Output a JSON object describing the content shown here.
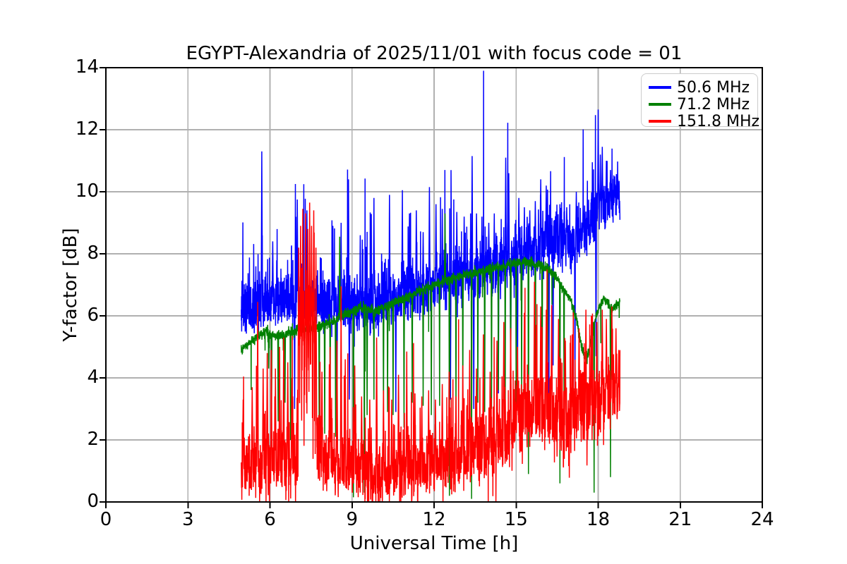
{
  "chart_data": {
    "type": "line",
    "title": "EGYPT-Alexandria of 2025/11/01 with focus code = 01",
    "xlabel": "Universal Time [h]",
    "ylabel": "Y-factor [dB]",
    "xlim": [
      0,
      24
    ],
    "ylim": [
      0,
      14
    ],
    "xticks": [
      0,
      3,
      6,
      9,
      12,
      15,
      18,
      21,
      24
    ],
    "yticks": [
      0,
      2,
      4,
      6,
      8,
      10,
      12,
      14
    ],
    "grid": true,
    "grid_color": "#b0b0b0",
    "axis_color": "#000000",
    "background_color": "#ffffff",
    "legend_position": "top-right",
    "legend_border_color": "#cccccc",
    "x_start": 4.95,
    "x_end": 18.8,
    "sample_step": 0.005,
    "series": [
      {
        "name": "50.6 MHz",
        "color": "#0000ff",
        "seed": 101,
        "noise_sigma": 0.42,
        "up_factor": 1.25,
        "down_factor": 0.85,
        "tail_prob": 0.08,
        "tail_scale": 0.85,
        "spike_w": 0.022,
        "dip_w": 0.016,
        "baseline": [
          [
            4.95,
            6.1
          ],
          [
            5.5,
            6.25
          ],
          [
            6.0,
            6.4
          ],
          [
            6.5,
            6.45
          ],
          [
            7.0,
            6.5
          ],
          [
            7.5,
            6.45
          ],
          [
            8.0,
            6.35
          ],
          [
            8.5,
            6.2
          ],
          [
            9.0,
            6.15
          ],
          [
            9.5,
            6.2
          ],
          [
            10.0,
            6.3
          ],
          [
            10.5,
            6.45
          ],
          [
            11.0,
            6.6
          ],
          [
            11.5,
            6.75
          ],
          [
            12.0,
            6.9
          ],
          [
            12.5,
            7.0
          ],
          [
            13.0,
            7.1
          ],
          [
            13.5,
            7.2
          ],
          [
            14.0,
            7.35
          ],
          [
            14.5,
            7.55
          ],
          [
            15.0,
            7.75
          ],
          [
            15.5,
            7.9
          ],
          [
            16.0,
            8.2
          ],
          [
            16.3,
            8.45
          ],
          [
            16.6,
            8.4
          ],
          [
            17.0,
            8.25
          ],
          [
            17.4,
            8.5
          ],
          [
            17.7,
            8.8
          ],
          [
            17.95,
            9.1
          ],
          [
            18.1,
            9.35
          ],
          [
            18.3,
            9.5
          ],
          [
            18.5,
            9.6
          ],
          [
            18.7,
            9.7
          ],
          [
            18.8,
            9.6
          ]
        ],
        "up_spikes": [
          [
            5.7,
            11.3
          ],
          [
            6.1,
            8.4
          ],
          [
            7.0,
            9.75
          ],
          [
            7.35,
            9.4
          ],
          [
            8.3,
            8.9
          ],
          [
            8.6,
            9.0
          ],
          [
            8.87,
            10.4
          ],
          [
            9.3,
            8.6
          ],
          [
            9.8,
            9.8
          ],
          [
            10.37,
            9.9
          ],
          [
            10.84,
            10.05
          ],
          [
            11.1,
            9.3
          ],
          [
            11.35,
            9.4
          ],
          [
            11.6,
            8.7
          ],
          [
            11.83,
            10.15
          ],
          [
            12.07,
            9.6
          ],
          [
            12.3,
            9.45
          ],
          [
            12.62,
            10.7
          ],
          [
            12.83,
            9.35
          ],
          [
            13.1,
            9.2
          ],
          [
            13.39,
            11.15
          ],
          [
            13.55,
            9.3
          ],
          [
            13.75,
            9.2
          ],
          [
            14.0,
            9.0
          ],
          [
            14.2,
            9.3
          ],
          [
            14.62,
            11.1
          ],
          [
            14.73,
            10.6
          ],
          [
            15.1,
            9.8
          ],
          [
            15.3,
            9.5
          ],
          [
            15.5,
            9.4
          ],
          [
            15.7,
            9.7
          ],
          [
            15.9,
            10.4
          ],
          [
            16.1,
            10.2
          ],
          [
            16.35,
            9.9
          ],
          [
            16.6,
            9.6
          ],
          [
            16.85,
            9.5
          ],
          [
            17.2,
            10.0
          ],
          [
            17.45,
            9.8
          ],
          [
            18.0,
            12.65
          ],
          [
            18.08,
            11.2
          ],
          [
            18.15,
            11.45
          ],
          [
            18.3,
            11.0
          ],
          [
            18.45,
            10.7
          ],
          [
            18.6,
            10.45
          ],
          [
            18.72,
            10.4
          ]
        ],
        "down_spikes": [
          [
            6.9,
            3.0
          ],
          [
            8.45,
            3.1
          ],
          [
            8.9,
            3.3
          ],
          [
            10.6,
            2.9
          ],
          [
            12.6,
            3.3
          ],
          [
            13.45,
            3.0
          ],
          [
            14.35,
            3.5
          ],
          [
            14.8,
            3.4
          ],
          [
            15.05,
            3.5
          ],
          [
            16.2,
            3.3
          ],
          [
            16.35,
            4.4
          ],
          [
            17.15,
            3.6
          ],
          [
            17.92,
            4.7
          ]
        ]
      },
      {
        "name": "71.2 MHz",
        "color": "#008000",
        "seed": 202,
        "noise_sigma": 0.08,
        "up_factor": 1.0,
        "down_factor": 1.0,
        "down_tail_prob": 0.02,
        "down_tail_scale": 0.4,
        "spike_w": 0.02,
        "dip_w": 0.014,
        "baseline": [
          [
            4.95,
            4.9
          ],
          [
            5.2,
            5.1
          ],
          [
            5.5,
            5.3
          ],
          [
            5.8,
            5.5
          ],
          [
            6.1,
            5.4
          ],
          [
            6.4,
            5.35
          ],
          [
            6.7,
            5.45
          ],
          [
            7.0,
            5.55
          ],
          [
            7.4,
            5.6
          ],
          [
            7.8,
            5.65
          ],
          [
            8.2,
            5.8
          ],
          [
            8.6,
            6.0
          ],
          [
            9.0,
            6.15
          ],
          [
            9.4,
            6.25
          ],
          [
            9.8,
            6.15
          ],
          [
            10.2,
            6.3
          ],
          [
            10.6,
            6.45
          ],
          [
            11.0,
            6.6
          ],
          [
            11.5,
            6.8
          ],
          [
            12.0,
            7.0
          ],
          [
            12.5,
            7.15
          ],
          [
            13.0,
            7.3
          ],
          [
            13.5,
            7.4
          ],
          [
            14.0,
            7.5
          ],
          [
            14.5,
            7.6
          ],
          [
            15.0,
            7.7
          ],
          [
            15.3,
            7.75
          ],
          [
            15.6,
            7.7
          ],
          [
            15.9,
            7.6
          ],
          [
            16.2,
            7.5
          ],
          [
            16.5,
            7.2
          ],
          [
            16.8,
            6.8
          ],
          [
            17.0,
            6.5
          ],
          [
            17.2,
            5.9
          ],
          [
            17.35,
            5.2
          ],
          [
            17.5,
            4.7
          ],
          [
            17.6,
            4.65
          ],
          [
            17.75,
            5.3
          ],
          [
            17.9,
            5.9
          ],
          [
            18.05,
            6.3
          ],
          [
            18.2,
            6.55
          ],
          [
            18.35,
            6.4
          ],
          [
            18.5,
            6.2
          ],
          [
            18.65,
            6.35
          ],
          [
            18.8,
            6.4
          ]
        ],
        "up_spikes": [
          [
            8.55,
            8.55
          ],
          [
            12.4,
            9.3
          ]
        ],
        "down_spikes": [
          [
            5.95,
            4.3
          ],
          [
            6.06,
            3.0
          ],
          [
            6.3,
            2.6
          ],
          [
            6.55,
            3.2
          ],
          [
            6.75,
            2.0
          ],
          [
            7.8,
            1.5
          ],
          [
            8.0,
            2.2
          ],
          [
            8.2,
            3.0
          ],
          [
            8.4,
            2.1
          ],
          [
            9.05,
            0.15
          ],
          [
            9.45,
            0.3
          ],
          [
            9.55,
            2.8
          ],
          [
            9.8,
            3.3
          ],
          [
            10.15,
            3.0
          ],
          [
            10.3,
            2.9
          ],
          [
            10.5,
            2.8
          ],
          [
            10.9,
            2.4
          ],
          [
            11.2,
            3.2
          ],
          [
            11.6,
            3.1
          ],
          [
            11.9,
            2.8
          ],
          [
            12.2,
            3.1
          ],
          [
            12.56,
            0.2
          ],
          [
            12.8,
            2.9
          ],
          [
            13.05,
            3.3
          ],
          [
            13.37,
            0.1
          ],
          [
            13.6,
            3.2
          ],
          [
            13.85,
            2.9
          ],
          [
            14.1,
            3.0
          ],
          [
            14.35,
            3.6
          ],
          [
            14.6,
            2.7
          ],
          [
            14.8,
            3.2
          ],
          [
            15.0,
            2.8
          ],
          [
            15.2,
            3.4
          ],
          [
            15.45,
            0.9
          ],
          [
            15.7,
            3.1
          ],
          [
            15.95,
            2.7
          ],
          [
            16.15,
            4.3
          ],
          [
            16.6,
            0.6
          ],
          [
            16.75,
            3.5
          ],
          [
            17.85,
            0.3
          ],
          [
            18.45,
            0.8
          ]
        ]
      },
      {
        "name": "151.8 MHz",
        "color": "#ff0000",
        "seed": 303,
        "up_factor": 1.2,
        "down_factor": 0.8,
        "tail_prob": 0.13,
        "tail_scale": 0.85,
        "down_tail_prob": 0.04,
        "down_tail_scale": 0.8,
        "spike_w": 0.025,
        "dip_w": 0.015,
        "noise_keys": [
          [
            4.95,
            0.5
          ],
          [
            6.95,
            0.5
          ],
          [
            7.05,
            1.5
          ],
          [
            7.65,
            1.5
          ],
          [
            7.75,
            0.5
          ],
          [
            9.2,
            0.45
          ],
          [
            10.5,
            0.4
          ],
          [
            12.0,
            0.45
          ],
          [
            14.0,
            0.5
          ],
          [
            14.8,
            0.55
          ],
          [
            15.5,
            0.6
          ],
          [
            16.5,
            0.6
          ],
          [
            17.5,
            0.6
          ],
          [
            18.8,
            0.55
          ]
        ],
        "baseline": [
          [
            4.95,
            1.2
          ],
          [
            5.1,
            1.0
          ],
          [
            5.5,
            0.95
          ],
          [
            6.0,
            1.0
          ],
          [
            6.5,
            1.0
          ],
          [
            6.95,
            1.1
          ],
          [
            7.05,
            4.2
          ],
          [
            7.2,
            4.6
          ],
          [
            7.35,
            4.7
          ],
          [
            7.5,
            4.6
          ],
          [
            7.65,
            4.0
          ],
          [
            7.75,
            1.3
          ],
          [
            8.0,
            1.2
          ],
          [
            8.5,
            1.1
          ],
          [
            9.0,
            1.0
          ],
          [
            9.3,
            0.85
          ],
          [
            9.6,
            0.75
          ],
          [
            10.0,
            0.7
          ],
          [
            10.5,
            0.75
          ],
          [
            11.0,
            0.9
          ],
          [
            11.5,
            1.0
          ],
          [
            12.0,
            1.05
          ],
          [
            12.5,
            1.15
          ],
          [
            13.0,
            1.3
          ],
          [
            13.5,
            1.45
          ],
          [
            14.0,
            1.6
          ],
          [
            14.4,
            1.8
          ],
          [
            14.7,
            2.1
          ],
          [
            15.0,
            2.4
          ],
          [
            15.3,
            2.6
          ],
          [
            15.7,
            2.8
          ],
          [
            16.0,
            2.8
          ],
          [
            16.4,
            2.6
          ],
          [
            17.0,
            2.4
          ],
          [
            17.5,
            2.9
          ],
          [
            18.0,
            3.0
          ],
          [
            18.3,
            3.3
          ],
          [
            18.8,
            3.4
          ]
        ],
        "up_spikes": [
          [
            5.02,
            3.3
          ],
          [
            5.35,
            3.7
          ],
          [
            5.55,
            6.45
          ],
          [
            5.75,
            4.3
          ],
          [
            5.9,
            4.8
          ],
          [
            6.05,
            4.9
          ],
          [
            6.2,
            4.3
          ],
          [
            6.35,
            5.0
          ],
          [
            6.5,
            5.3
          ],
          [
            6.65,
            4.5
          ],
          [
            6.8,
            4.0
          ],
          [
            7.05,
            8.2
          ],
          [
            7.12,
            8.9
          ],
          [
            7.2,
            9.45
          ],
          [
            7.3,
            9.3
          ],
          [
            7.38,
            8.8
          ],
          [
            7.45,
            9.65
          ],
          [
            7.52,
            8.9
          ],
          [
            7.6,
            9.4
          ],
          [
            7.68,
            8.2
          ],
          [
            7.9,
            4.2
          ],
          [
            8.2,
            5.0
          ],
          [
            8.45,
            5.2
          ],
          [
            8.6,
            6.95
          ],
          [
            8.75,
            4.6
          ],
          [
            9.1,
            4.4
          ],
          [
            9.35,
            3.4
          ],
          [
            9.65,
            3.3
          ],
          [
            9.9,
            5.3
          ],
          [
            10.15,
            3.6
          ],
          [
            10.45,
            3.3
          ],
          [
            10.7,
            4.1
          ],
          [
            11.0,
            4.85
          ],
          [
            11.3,
            3.5
          ],
          [
            11.55,
            3.4
          ],
          [
            11.8,
            3.6
          ],
          [
            12.05,
            3.3
          ],
          [
            12.3,
            3.8
          ],
          [
            12.55,
            4.2
          ],
          [
            12.8,
            3.4
          ],
          [
            13.05,
            4.4
          ],
          [
            13.3,
            4.9
          ],
          [
            13.55,
            4.3
          ],
          [
            13.8,
            5.4
          ],
          [
            14.05,
            4.2
          ],
          [
            14.3,
            5.2
          ],
          [
            14.55,
            5.8
          ],
          [
            14.8,
            5.6
          ],
          [
            15.05,
            5.0
          ],
          [
            15.3,
            6.1
          ],
          [
            15.67,
            7.1
          ],
          [
            15.9,
            6.3
          ],
          [
            16.1,
            6.2
          ],
          [
            16.3,
            6.35
          ],
          [
            16.55,
            5.9
          ],
          [
            16.8,
            5.2
          ],
          [
            17.05,
            5.4
          ],
          [
            17.3,
            5.6
          ],
          [
            17.55,
            6.2
          ],
          [
            17.75,
            6.0
          ],
          [
            17.95,
            5.8
          ],
          [
            18.15,
            6.2
          ],
          [
            18.3,
            5.9
          ],
          [
            18.5,
            6.3
          ],
          [
            18.65,
            5.6
          ],
          [
            18.75,
            4.9
          ]
        ],
        "down_spikes": []
      }
    ]
  }
}
